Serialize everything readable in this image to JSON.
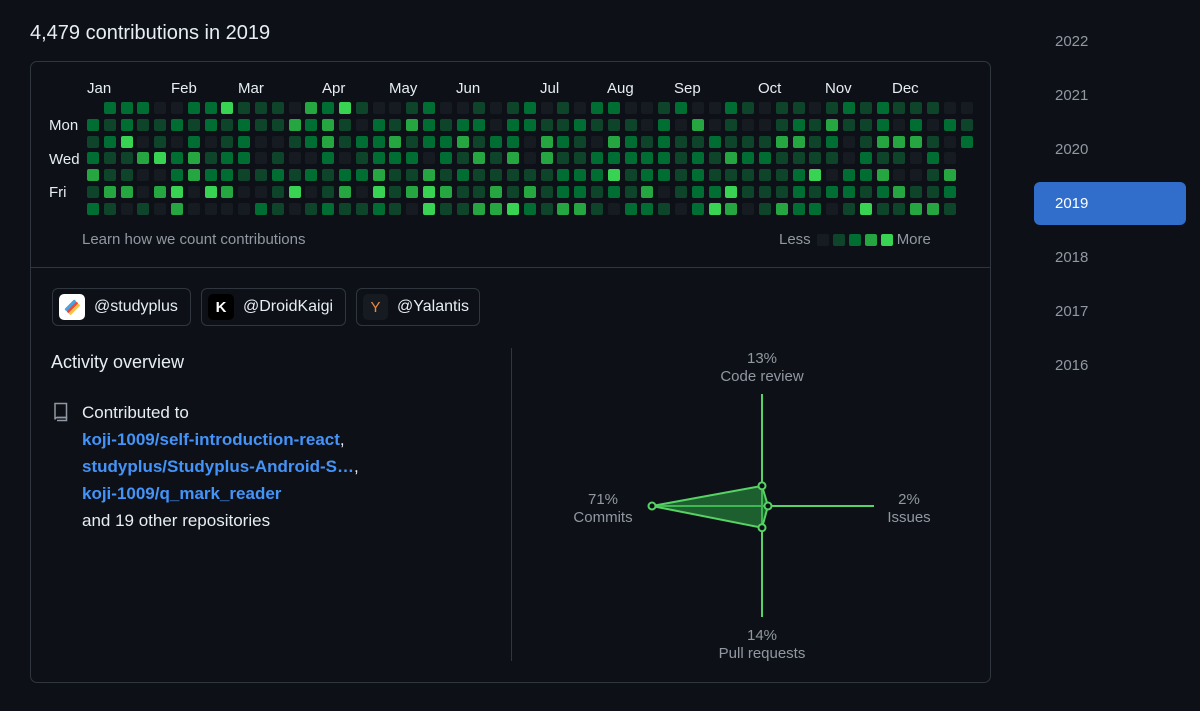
{
  "header": {
    "title": "4,479 contributions in 2019"
  },
  "calendar": {
    "months": [
      "Jan",
      "Feb",
      "Mar",
      "Apr",
      "May",
      "Jun",
      "Jul",
      "Aug",
      "Sep",
      "Oct",
      "Nov",
      "Dec"
    ],
    "day_labels": [
      "Mon",
      "Wed",
      "Fri"
    ],
    "learn_link": "Learn how we count contributions",
    "legend_less": "Less",
    "legend_more": "More",
    "level_colors": [
      "#161b22",
      "#0e4429",
      "#006d32",
      "#26a641",
      "#39d353"
    ]
  },
  "organizations": [
    {
      "name": "@studyplus",
      "icon": "studyplus-logo-icon"
    },
    {
      "name": "@DroidKaigi",
      "icon": "droidkaigi-logo-icon",
      "glyph": "K"
    },
    {
      "name": "@Yalantis",
      "icon": "yalantis-logo-icon",
      "glyph": "Y"
    }
  ],
  "activity": {
    "title": "Activity overview",
    "contributed_to": "Contributed to",
    "repos": [
      "koji-1009/self-introduction-react",
      "studyplus/Studyplus-Android-S…",
      "koji-1009/q_mark_reader"
    ],
    "others": "and 19 other repositories"
  },
  "radar": {
    "code_review": {
      "pct": "13%",
      "label": "Code review",
      "value": 13
    },
    "issues": {
      "pct": "2%",
      "label": "Issues",
      "value": 2
    },
    "pull_requests": {
      "pct": "14%",
      "label": "Pull requests",
      "value": 14
    },
    "commits": {
      "pct": "71%",
      "label": "Commits",
      "value": 71
    },
    "line_color": "#56d364"
  },
  "years": [
    "2022",
    "2021",
    "2020",
    "2019",
    "2018",
    "2017",
    "2016"
  ],
  "selected_year": "2019"
}
